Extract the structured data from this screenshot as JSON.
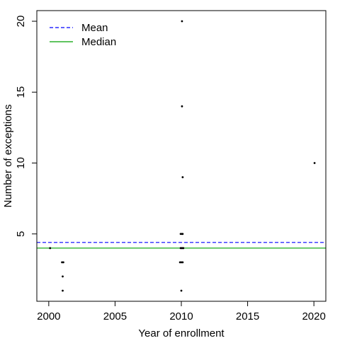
{
  "chart_data": {
    "type": "scatter",
    "title": "",
    "xlabel": "Year of enrollment",
    "ylabel": "Number of exceptions",
    "xlim": [
      1999.1,
      2020.9
    ],
    "ylim": [
      0.25,
      20.75
    ],
    "x_ticks": [
      2000,
      2005,
      2010,
      2015,
      2020
    ],
    "y_ticks": [
      5,
      10,
      15,
      20
    ],
    "grid": false,
    "legend": {
      "position": "top-left",
      "entries": [
        {
          "label": "Mean",
          "color": "#0000ff",
          "style": "dashed"
        },
        {
          "label": "Median",
          "color": "#00a000",
          "style": "solid"
        }
      ]
    },
    "reference_lines": [
      {
        "name": "Mean",
        "y": 4.4,
        "color": "#0000ff",
        "style": "dashed"
      },
      {
        "name": "Median",
        "y": 4.0,
        "color": "#00a000",
        "style": "solid"
      }
    ],
    "points": [
      {
        "x": 2001.05,
        "y": 1
      },
      {
        "x": 2001.05,
        "y": 2
      },
      {
        "x": 2001.0,
        "y": 3
      },
      {
        "x": 2001.1,
        "y": 3
      },
      {
        "x": 2000.1,
        "y": 4
      },
      {
        "x": 2010.0,
        "y": 1
      },
      {
        "x": 2009.9,
        "y": 3
      },
      {
        "x": 2010.0,
        "y": 3
      },
      {
        "x": 2010.1,
        "y": 3
      },
      {
        "x": 2009.95,
        "y": 4
      },
      {
        "x": 2010.05,
        "y": 4
      },
      {
        "x": 2010.15,
        "y": 4
      },
      {
        "x": 2009.95,
        "y": 5
      },
      {
        "x": 2010.05,
        "y": 5
      },
      {
        "x": 2010.1,
        "y": 5
      },
      {
        "x": 2010.1,
        "y": 9
      },
      {
        "x": 2010.05,
        "y": 14
      },
      {
        "x": 2010.05,
        "y": 20
      },
      {
        "x": 2020.05,
        "y": 10
      }
    ]
  }
}
